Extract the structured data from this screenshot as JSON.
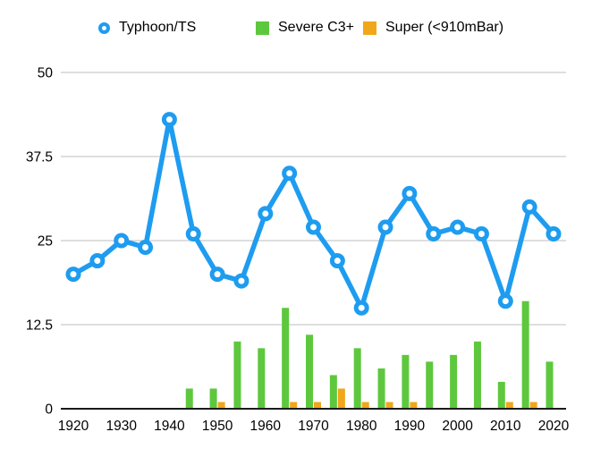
{
  "legend": {
    "items": [
      {
        "label": "Typhoon/TS",
        "marker": "open-circle",
        "color": "#1E9CF0"
      },
      {
        "label": "Severe C3+",
        "marker": "square",
        "color": "#5DC83D"
      },
      {
        "label": "Super (<910mBar)",
        "marker": "square",
        "color": "#F0A71B"
      }
    ]
  },
  "chart_data": {
    "type": "line+bar combo",
    "x": [
      1920,
      1925,
      1930,
      1935,
      1940,
      1945,
      1950,
      1955,
      1960,
      1965,
      1970,
      1975,
      1980,
      1985,
      1990,
      1995,
      2000,
      2005,
      2010,
      2015,
      2020
    ],
    "series": [
      {
        "name": "Typhoon/TS",
        "type": "line",
        "marker": "open-circle",
        "color": "#1E9CF0",
        "values": [
          20,
          22,
          25,
          24,
          43,
          26,
          20,
          19,
          29,
          35,
          27,
          22,
          15,
          27,
          32,
          26,
          27,
          26,
          16,
          30,
          26
        ]
      },
      {
        "name": "Severe C3+",
        "type": "bar",
        "color": "#5DC83D",
        "values": [
          0,
          0,
          0,
          0,
          0,
          3,
          3,
          10,
          9,
          15,
          11,
          5,
          9,
          6,
          8,
          7,
          8,
          10,
          4,
          16,
          7
        ]
      },
      {
        "name": "Super (<910mBar)",
        "type": "bar",
        "color": "#F0A71B",
        "values": [
          0,
          0,
          0,
          0,
          0,
          0,
          1,
          0,
          0,
          1,
          1,
          3,
          1,
          1,
          1,
          0,
          0,
          0,
          1,
          1,
          0
        ]
      }
    ],
    "ylim": [
      0,
      50
    ],
    "yticks": [
      0,
      12.5,
      25,
      37.5,
      50
    ],
    "ytick_labels": [
      "0",
      "12.5",
      "25",
      "37.5",
      "50"
    ],
    "xticks": [
      1920,
      1930,
      1940,
      1950,
      1960,
      1970,
      1980,
      1990,
      2000,
      2010,
      2020
    ],
    "grid": "horizontal",
    "legend_position": "top",
    "colors": {
      "gridline": "#C9C9C9",
      "axis": "#1A1A1A",
      "tick_text": "#000000",
      "background": "#FFFFFF"
    }
  }
}
